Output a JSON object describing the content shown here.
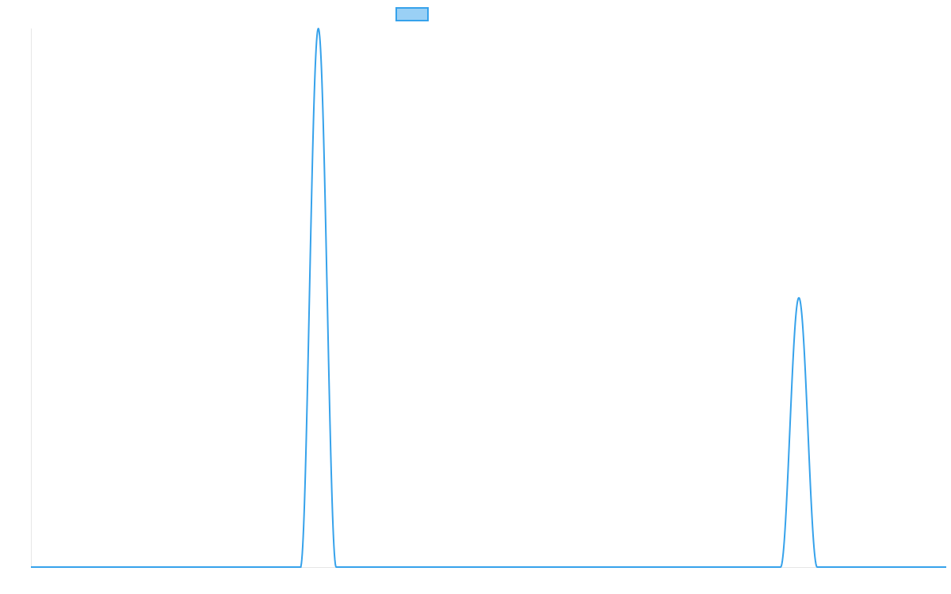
{
  "colors": {
    "series_stroke": "#36a2eb",
    "series_fill": "#9ad0f5",
    "axis": "#e6e6e6",
    "background": "#ffffff"
  },
  "chart_data": {
    "type": "line",
    "title": "",
    "xlabel": "",
    "ylabel": "",
    "grid": false,
    "legend": "top-center",
    "xlim": [
      0,
      100
    ],
    "ylim": [
      0,
      1
    ],
    "series": [
      {
        "name": "",
        "x": [
          0,
          29.5,
          31.4,
          33.4,
          49.0,
          81.9,
          83.9,
          85.9,
          100
        ],
        "y": [
          0,
          0,
          1.0,
          0,
          0,
          0,
          0.5,
          0,
          0
        ],
        "peaks": [
          {
            "x": 31.4,
            "y": 1.0,
            "start": 29.5,
            "end": 33.4
          },
          {
            "x": 83.9,
            "y": 0.5,
            "start": 81.9,
            "end": 85.9
          }
        ]
      }
    ]
  }
}
